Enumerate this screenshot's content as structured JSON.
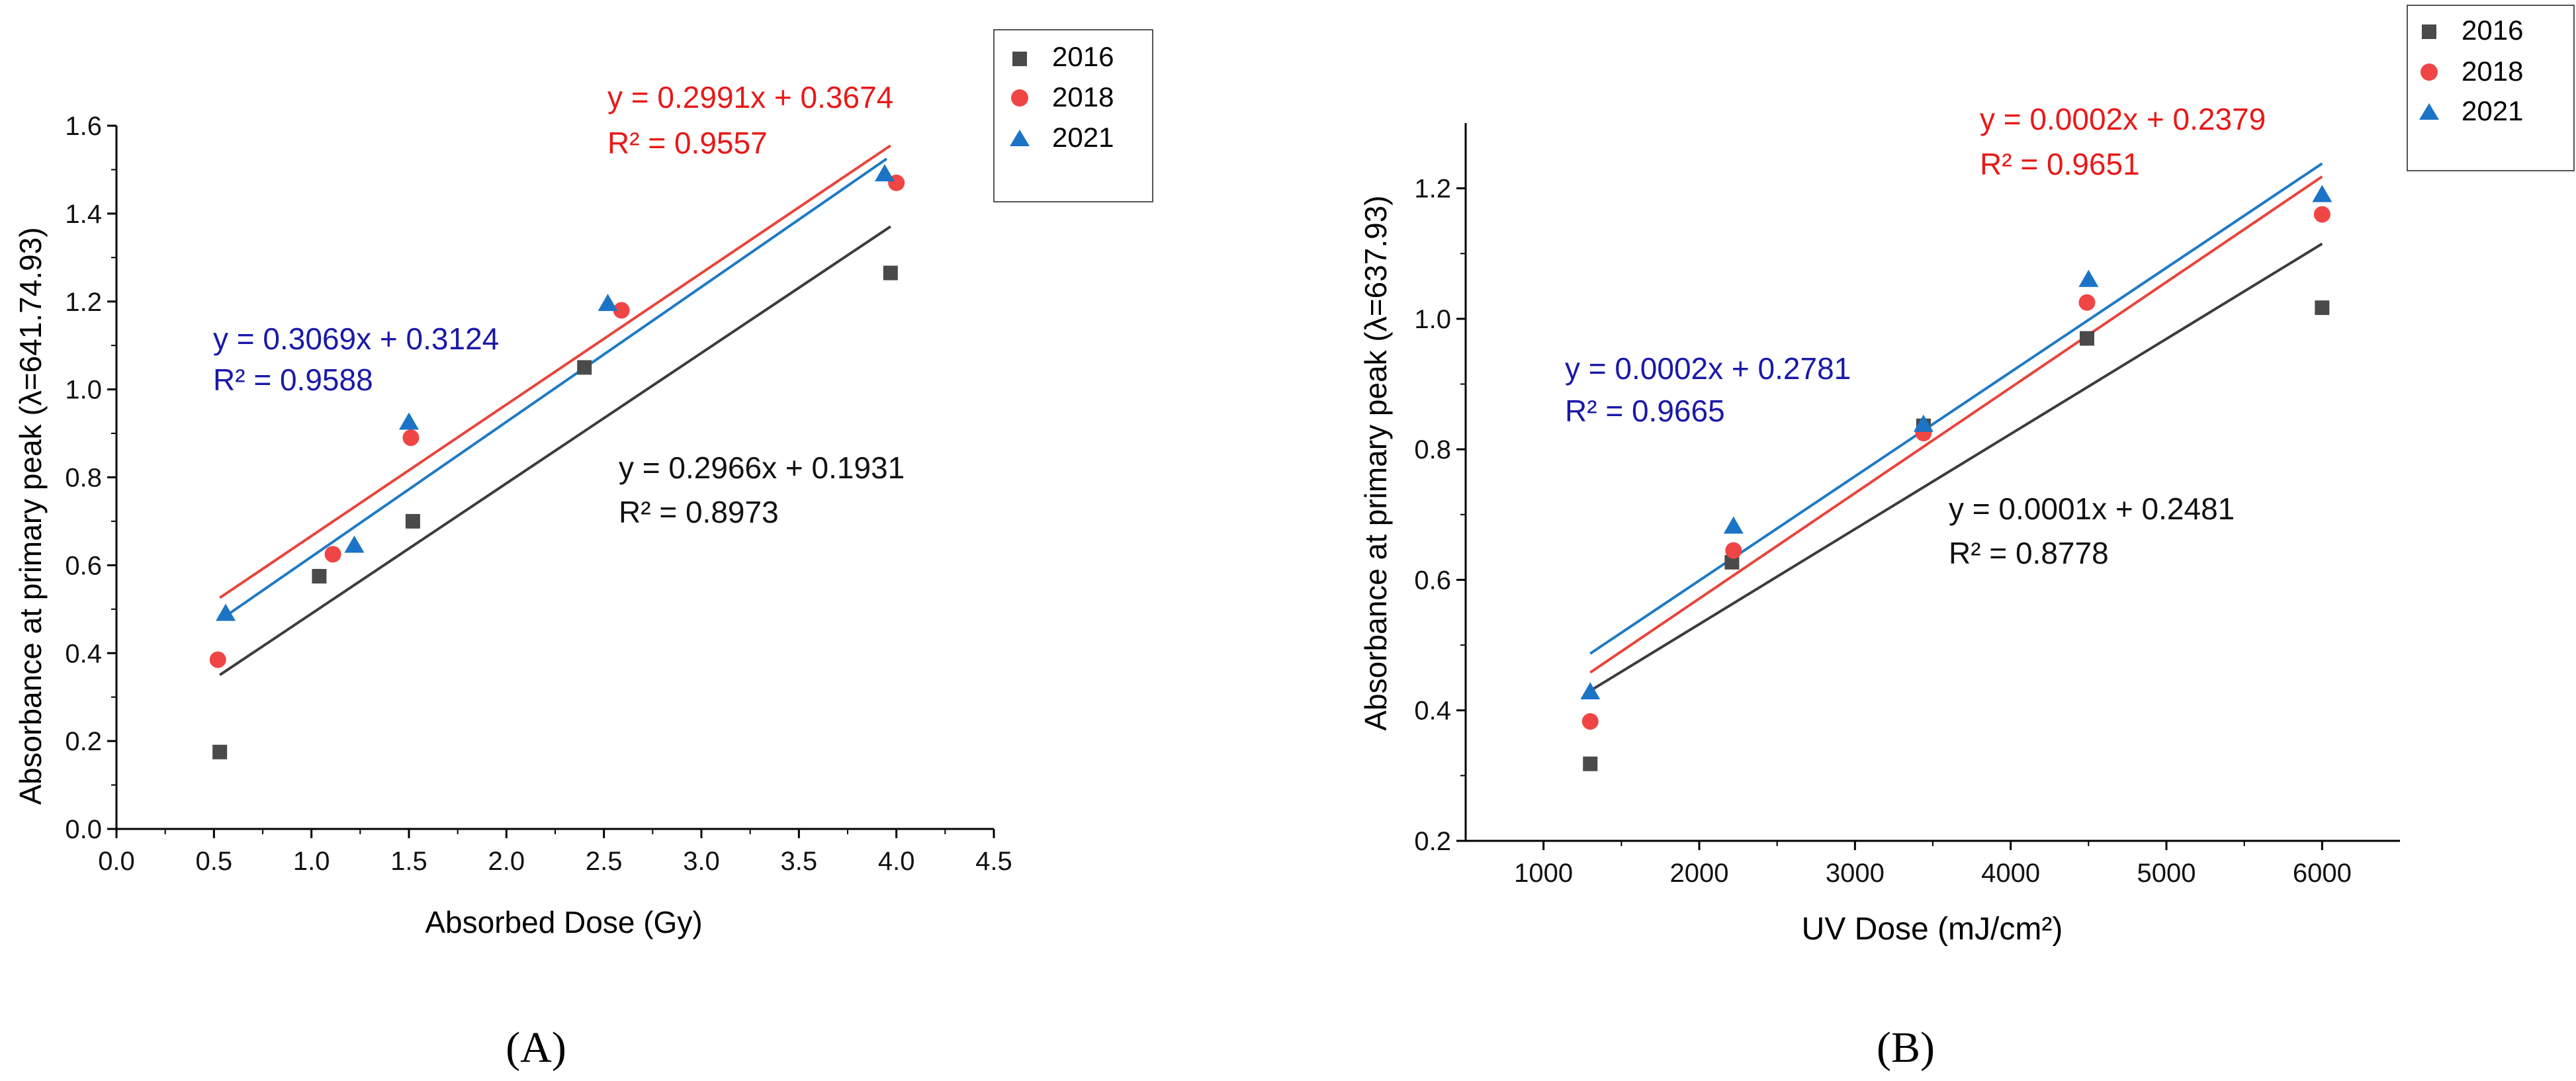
{
  "colors": {
    "series_2016": "#4a4a4a",
    "series_2018": "#f04545",
    "series_2021": "#1b74c6",
    "fit_2016": "#3c3c3c",
    "fit_2018": "#e8453c",
    "fit_2021": "#1f7ac4",
    "eq_2016": "#111111",
    "eq_2018": "#e81919",
    "eq_2021": "#1919a8",
    "axis": "#000000"
  },
  "chart_data": [
    {
      "type": "scatter",
      "panel_label": "(A)",
      "xlabel": "Absorbed Dose (Gy)",
      "ylabel": "Absorbance at primary peak (λ=641.74.93)",
      "xlim": [
        0,
        4.5
      ],
      "ylim": [
        0,
        1.6
      ],
      "xticks": [
        "0.0",
        "0.5",
        "1.0",
        "1.5",
        "2.0",
        "2.5",
        "3.0",
        "3.5",
        "4.0",
        "4.5"
      ],
      "yticks": [
        "0.0",
        "0.2",
        "0.4",
        "0.6",
        "0.8",
        "1.0",
        "1.2",
        "1.4",
        "1.6"
      ],
      "legend": [
        "2016",
        "2018",
        "2021"
      ],
      "series": [
        {
          "name": "2016",
          "marker": "square",
          "x": [
            0.53,
            1.04,
            1.52,
            2.4,
            3.97
          ],
          "y": [
            0.175,
            0.575,
            0.7,
            1.05,
            1.265
          ]
        },
        {
          "name": "2018",
          "marker": "circle",
          "x": [
            0.52,
            1.11,
            1.51,
            2.59,
            4.0
          ],
          "y": [
            0.385,
            0.625,
            0.89,
            1.18,
            1.47
          ]
        },
        {
          "name": "2021",
          "marker": "triangle",
          "x": [
            0.56,
            1.22,
            1.5,
            2.52,
            3.94
          ],
          "y": [
            0.49,
            0.645,
            0.925,
            1.195,
            1.49
          ]
        }
      ],
      "fits": [
        {
          "name": "2016",
          "slope": 0.2966,
          "intercept": 0.1931,
          "x_range": [
            0.53,
            3.97
          ],
          "eq": "y = 0.2966x + 0.1931",
          "r2": "R² = 0.8973"
        },
        {
          "name": "2018",
          "slope": 0.2991,
          "intercept": 0.3674,
          "x_range": [
            0.53,
            3.97
          ],
          "eq": "y = 0.2991x + 0.3674",
          "r2": "R² = 0.9557"
        },
        {
          "name": "2021",
          "slope": 0.3069,
          "intercept": 0.3124,
          "x_range": [
            0.56,
            3.95
          ],
          "eq": "y = 0.3069x + 0.3124",
          "r2": "R² = 0.9588"
        }
      ]
    },
    {
      "type": "scatter",
      "panel_label": "(B)",
      "xlabel": "UV Dose (mJ/cm²)",
      "ylabel": "Absorbance at primary peak (λ=637.93)",
      "xlim": [
        500,
        6500
      ],
      "ylim": [
        0.2,
        1.3
      ],
      "xticks": [
        "1000",
        "2000",
        "3000",
        "4000",
        "5000",
        "6000"
      ],
      "yticks": [
        "0.2",
        "0.4",
        "0.6",
        "0.8",
        "1.0",
        "1.2"
      ],
      "legend": [
        "2016",
        "2018",
        "2021"
      ],
      "series": [
        {
          "name": "2016",
          "marker": "square",
          "x": [
            1300,
            2210,
            3440,
            4490,
            6000
          ],
          "y": [
            0.318,
            0.627,
            0.836,
            0.97,
            1.017
          ]
        },
        {
          "name": "2018",
          "marker": "circle",
          "x": [
            1300,
            2220,
            3440,
            4490,
            6000
          ],
          "y": [
            0.383,
            0.645,
            0.825,
            1.025,
            1.16
          ]
        },
        {
          "name": "2021",
          "marker": "triangle",
          "x": [
            1300,
            2220,
            3440,
            4500,
            6000
          ],
          "y": [
            0.428,
            0.682,
            0.838,
            1.06,
            1.19
          ]
        }
      ],
      "fits": [
        {
          "name": "2016",
          "x_range": [
            1300,
            6000
          ],
          "y_range": [
            0.43,
            1.115
          ],
          "eq": "y = 0.0001x + 0.2481",
          "r2": "R² = 0.8778"
        },
        {
          "name": "2018",
          "x_range": [
            1300,
            6000
          ],
          "y_range": [
            0.458,
            1.218
          ],
          "eq": "y = 0.0002x + 0.2379",
          "r2": "R² = 0.9651"
        },
        {
          "name": "2021",
          "x_range": [
            1300,
            6000
          ],
          "y_range": [
            0.487,
            1.238
          ],
          "eq": "y = 0.0002x + 0.2781",
          "r2": "R² = 0.9665"
        }
      ]
    }
  ]
}
